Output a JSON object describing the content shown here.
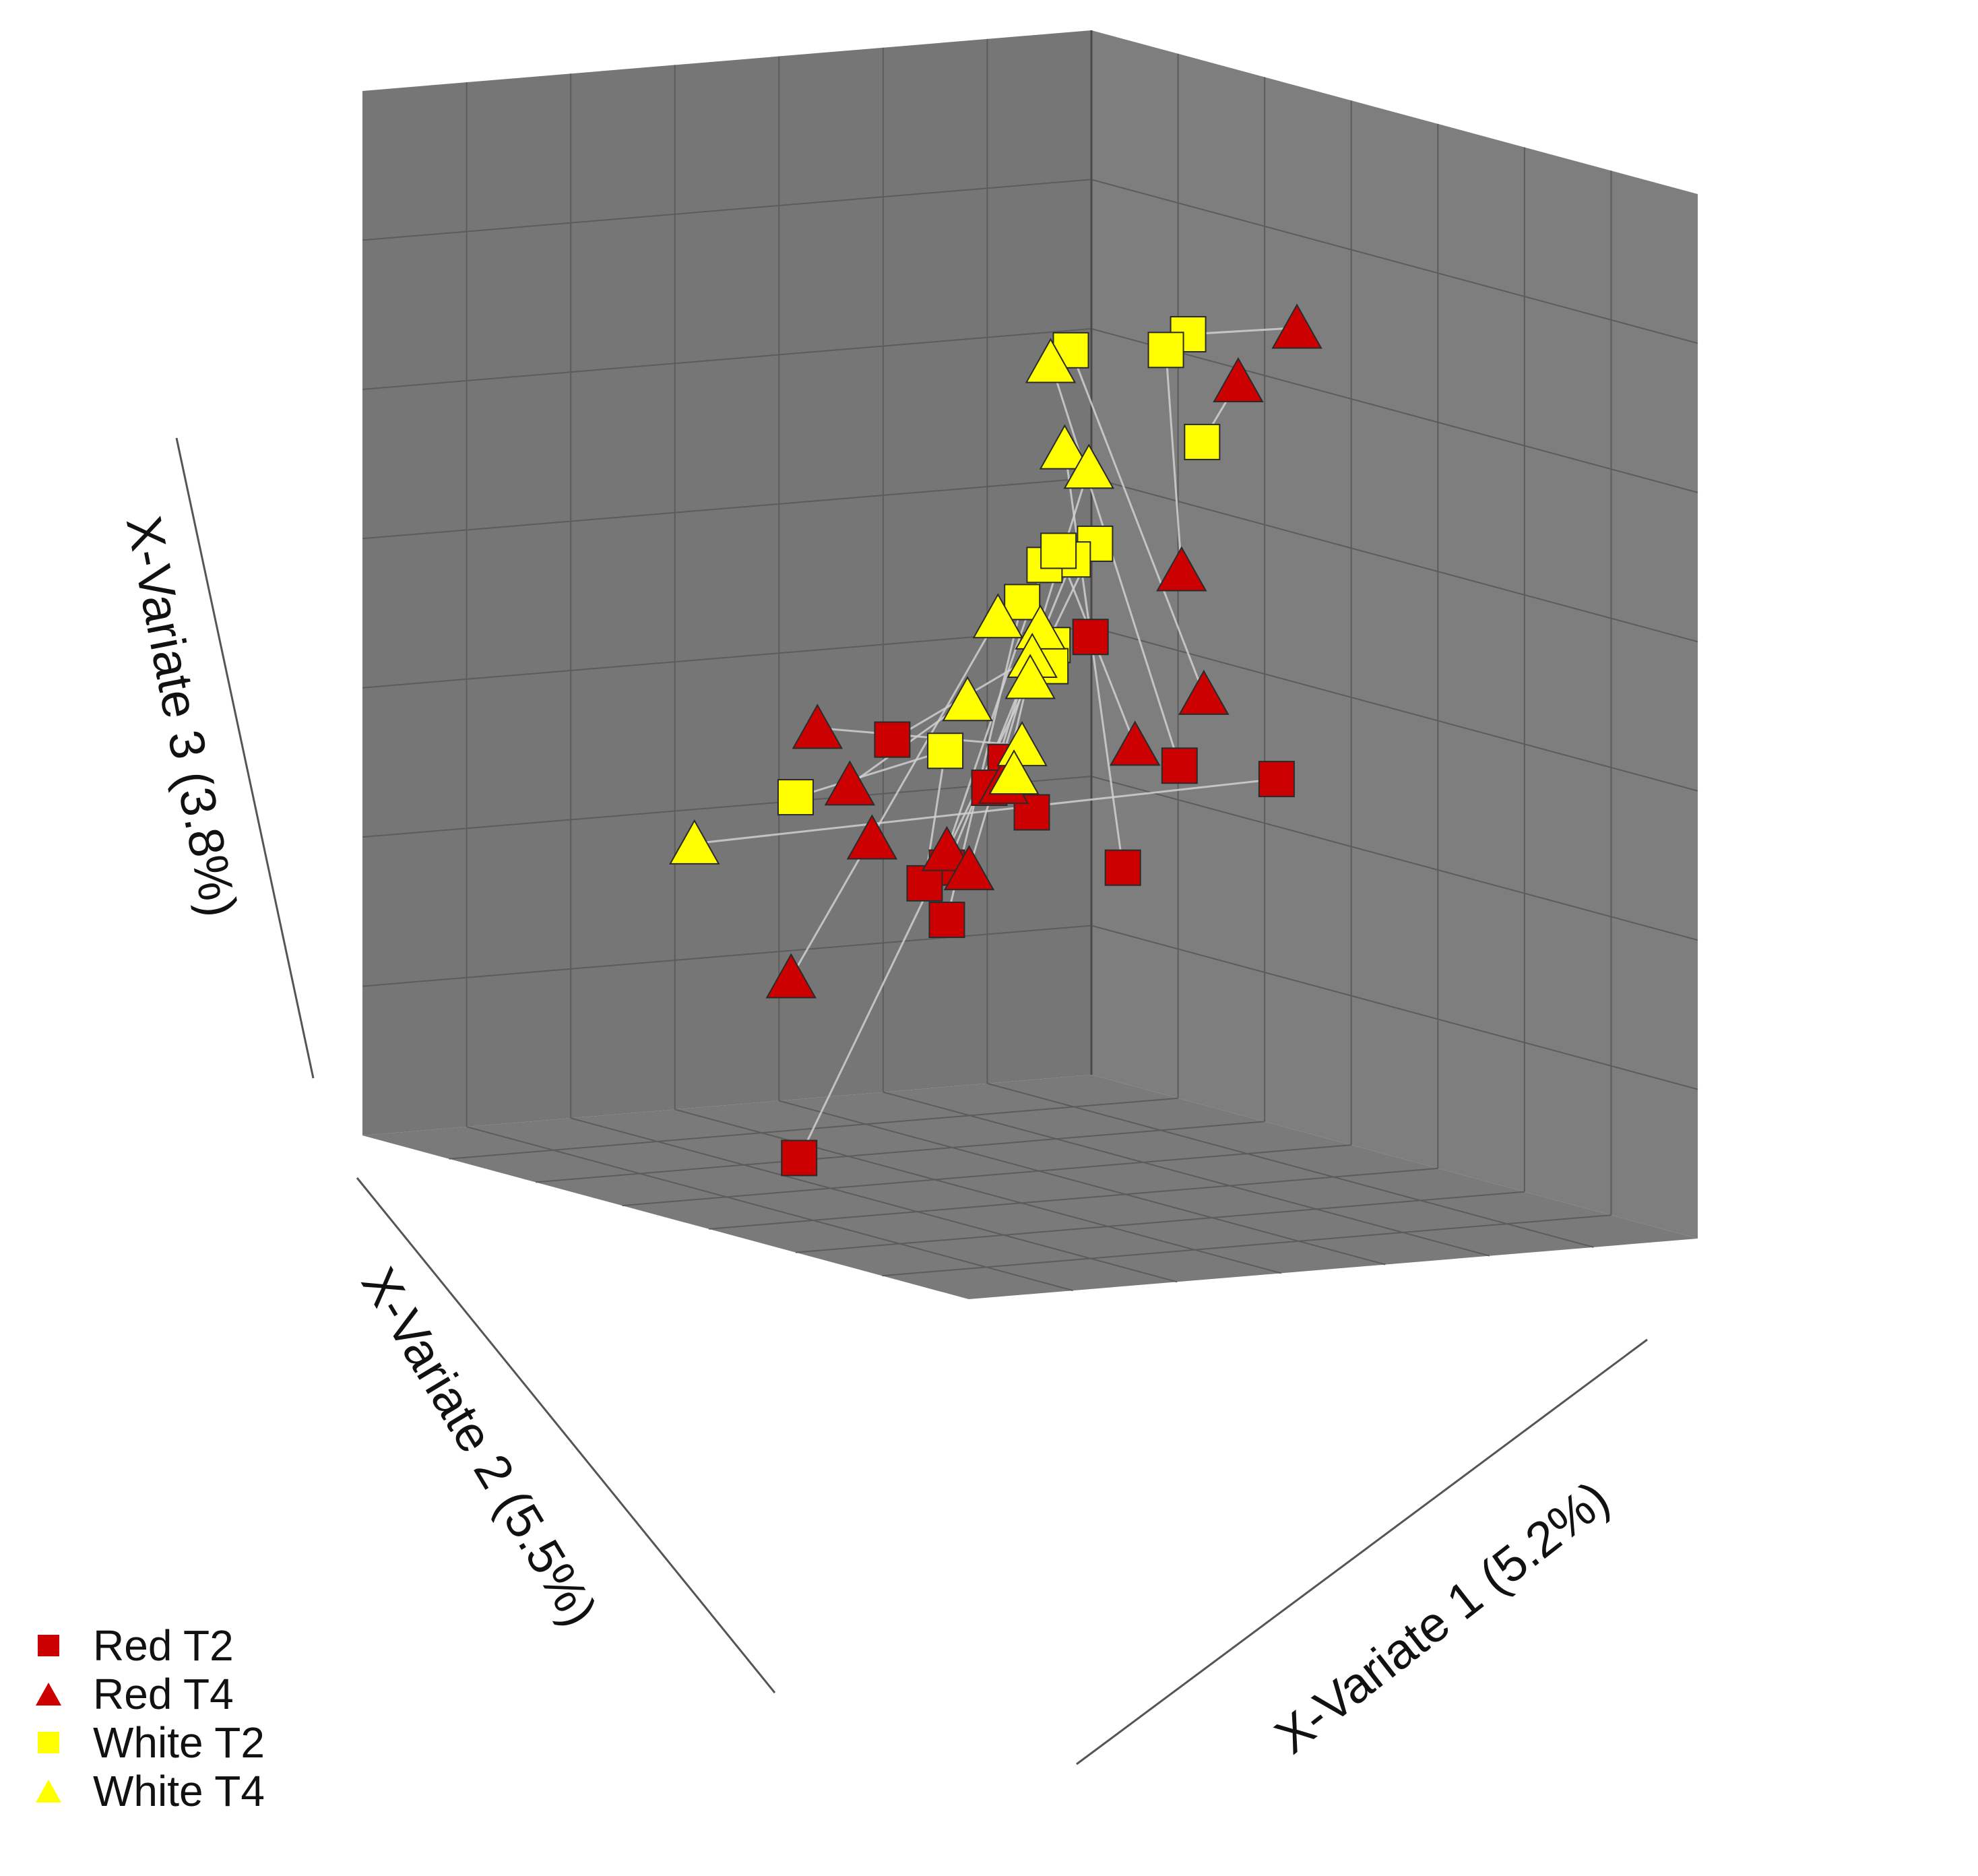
{
  "chart_data": {
    "type": "scatter3d",
    "title": "",
    "axes": {
      "x": {
        "label": "X-Variate 1 (5.2%)",
        "range": [
          -3,
          3
        ]
      },
      "y": {
        "label": "X-Variate 2 (5.5%)",
        "range": [
          -3,
          3
        ]
      },
      "z": {
        "label": "X-Variate 3 (3.8%)",
        "range": [
          -3,
          3
        ]
      }
    },
    "grid": true,
    "legend_position": "bottom-left",
    "colors": {
      "Red": "#cc0000",
      "White": "#ffff00",
      "outline": "#2a2a2a",
      "panel": "#7a7a7a",
      "connector": "#d0d0d0"
    },
    "series": [
      {
        "name": "Red T2",
        "group": "Red",
        "shape": "square",
        "points": [
          [
            1.8,
            -1.0,
            0.5
          ],
          [
            0.8,
            -1.8,
            -0.2
          ],
          [
            1.2,
            -1.2,
            -0.3
          ],
          [
            1.4,
            -1.5,
            -0.4
          ],
          [
            2.2,
            -0.6,
            -0.2
          ],
          [
            2.0,
            -0.9,
            -0.8
          ],
          [
            0.6,
            -2.4,
            -2.6
          ],
          [
            1.1,
            -1.6,
            -0.9
          ],
          [
            1.0,
            -1.7,
            -1.0
          ],
          [
            1.1,
            -1.6,
            -1.2
          ],
          [
            2.8,
            -0.3,
            -0.2
          ],
          [
            1.7,
            -1.4,
            -0.5
          ]
        ]
      },
      {
        "name": "Red T4",
        "group": "Red",
        "shape": "triangle",
        "points": [
          [
            2.4,
            0.2,
            2.3
          ],
          [
            2.3,
            -0.2,
            2.0
          ],
          [
            2.1,
            -0.5,
            0.9
          ],
          [
            2.2,
            -0.4,
            0.2
          ],
          [
            2.0,
            -0.8,
            -0.1
          ],
          [
            0.3,
            -2.0,
            -0.2
          ],
          [
            0.5,
            -1.9,
            -0.5
          ],
          [
            0.6,
            -1.8,
            -0.8
          ],
          [
            1.3,
            -1.3,
            -0.4
          ],
          [
            1.1,
            -1.6,
            -0.8
          ],
          [
            1.2,
            -1.5,
            -0.9
          ],
          [
            0.4,
            -2.3,
            -1.6
          ]
        ]
      },
      {
        "name": "White T2",
        "group": "White",
        "shape": "square",
        "points": [
          [
            -0.6,
            1.8,
            1.7
          ],
          [
            -0.7,
            1.7,
            1.6
          ],
          [
            -1.4,
            1.5,
            1.5
          ],
          [
            0.5,
            1.0,
            1.3
          ],
          [
            -0.8,
            1.2,
            0.5
          ],
          [
            -0.9,
            1.1,
            0.4
          ],
          [
            -1.3,
            1.2,
            0.3
          ],
          [
            -0.2,
            0.4,
            0.6
          ],
          [
            -0.8,
            0.6,
            0.2
          ],
          [
            -0.5,
            0.6,
            0.0
          ],
          [
            -0.4,
            0.5,
            -0.1
          ],
          [
            -1.2,
            0.3,
            -0.7
          ],
          [
            -2.2,
            -0.1,
            -1.1
          ]
        ]
      },
      {
        "name": "White T4",
        "group": "White",
        "shape": "triangle",
        "points": [
          [
            -1.6,
            1.5,
            1.4
          ],
          [
            -1.1,
            1.2,
            1.0
          ],
          [
            -0.5,
            0.9,
            1.0
          ],
          [
            -0.5,
            0.5,
            0.1
          ],
          [
            -1.4,
            0.9,
            0.0
          ],
          [
            -0.7,
            0.6,
            -0.1
          ],
          [
            -0.6,
            0.5,
            -0.2
          ],
          [
            -1.1,
            0.4,
            -0.4
          ],
          [
            -0.2,
            0.1,
            -0.5
          ],
          [
            -0.4,
            0.2,
            -0.7
          ],
          [
            -2.6,
            -0.6,
            -1.4
          ]
        ]
      }
    ],
    "connections": [
      [
        [
          "Red T4",
          0
        ],
        [
          "White T2",
          0
        ]
      ],
      [
        [
          "Red T4",
          1
        ],
        [
          "White T2",
          3
        ]
      ],
      [
        [
          "Red T4",
          2
        ],
        [
          "White T2",
          1
        ]
      ],
      [
        [
          "Red T4",
          3
        ],
        [
          "White T2",
          2
        ]
      ],
      [
        [
          "Red T4",
          4
        ],
        [
          "White T2",
          7
        ]
      ],
      [
        [
          "Red T2",
          10
        ],
        [
          "White T4",
          10
        ]
      ],
      [
        [
          "White T2",
          11
        ],
        [
          "White T2",
          12
        ]
      ],
      [
        [
          "White T2",
          11
        ],
        [
          "Red T2",
          8
        ]
      ],
      [
        [
          "White T2",
          4
        ],
        [
          "Red T2",
          6
        ]
      ],
      [
        [
          "White T4",
          4
        ],
        [
          "Red T4",
          11
        ]
      ],
      [
        [
          "White T4",
          0
        ],
        [
          "Red T2",
          4
        ]
      ],
      [
        [
          "White T4",
          1
        ],
        [
          "Red T2",
          5
        ]
      ],
      [
        [
          "White T2",
          5
        ],
        [
          "Red T2",
          7
        ]
      ],
      [
        [
          "White T2",
          6
        ],
        [
          "Red T4",
          9
        ]
      ],
      [
        [
          "White T2",
          8
        ],
        [
          "Red T2",
          9
        ]
      ],
      [
        [
          "White T4",
          5
        ],
        [
          "Red T4",
          10
        ]
      ],
      [
        [
          "White T4",
          3
        ],
        [
          "Red T4",
          8
        ]
      ],
      [
        [
          "White T4",
          7
        ],
        [
          "Red T4",
          6
        ]
      ],
      [
        [
          "White T4",
          2
        ],
        [
          "Red T2",
          3
        ]
      ],
      [
        [
          "White T2",
          9
        ],
        [
          "Red T2",
          1
        ]
      ],
      [
        [
          "White T4",
          9
        ],
        [
          "Red T2",
          11
        ]
      ],
      [
        [
          "White T4",
          8
        ],
        [
          "Red T4",
          5
        ]
      ]
    ]
  },
  "legend": {
    "items": [
      {
        "label": "Red T2"
      },
      {
        "label": "Red T4"
      },
      {
        "label": "White T2"
      },
      {
        "label": "White T4"
      }
    ]
  }
}
